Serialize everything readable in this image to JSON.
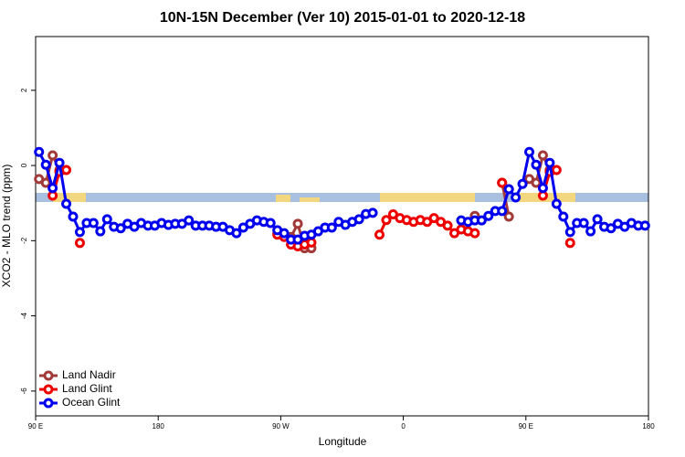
{
  "chart_data": {
    "type": "line",
    "title": "10N-15N December (Ver 10)   2015-01-01 to 2020-12-18",
    "x_label": "Longitude",
    "y_label": "XCO2 - MLO trend (ppm)",
    "xlim": [
      90,
      540
    ],
    "xticks": [
      {
        "value": 90,
        "label": "90 E"
      },
      180,
      {
        "value": 270,
        "label": "90 W"
      },
      {
        "value": 360,
        "label": "0"
      },
      {
        "value": 450,
        "label": "90 E"
      },
      {
        "value": 540,
        "label": "180"
      }
    ],
    "ylim": [
      -6.66,
      3.43
    ],
    "yticks": [
      2,
      0,
      -2,
      -4,
      -6
    ],
    "legend": "bottom-left",
    "x": [
      92.5,
      97.5,
      102.5,
      107.5,
      112.5,
      117.5,
      122.5,
      127.5,
      132.5,
      137.5,
      142.5,
      147.5,
      152.5,
      157.5,
      162.5,
      167.5,
      172.5,
      177.5,
      182.5,
      187.5,
      192.5,
      197.5,
      202.5,
      207.5,
      212.5,
      217.5,
      222.5,
      227.5,
      232.5,
      237.5,
      242.5,
      247.5,
      252.5,
      257.5,
      262.5,
      267.5,
      272.5,
      277.5,
      282.5,
      287.5,
      292.5,
      297.5,
      302.5,
      307.5,
      312.5,
      317.5,
      322.5,
      327.5,
      332.5,
      337.5,
      342.5,
      347.5,
      352.5,
      357.5,
      362.5,
      367.5,
      372.5,
      377.5,
      382.5,
      387.5,
      392.5,
      397.5,
      402.5,
      407.5,
      412.5,
      417.5,
      422.5,
      427.5,
      432.5,
      437.5,
      442.5,
      447.5,
      452.5,
      457.5,
      462.5,
      467.5,
      472.5,
      477.5,
      482.5,
      487.5,
      492.5,
      497.5,
      502.5,
      507.5,
      512.5,
      517.5,
      522.5,
      527.5,
      532.5,
      537.5
    ],
    "series": [
      {
        "name": "Land Nadir",
        "color": "#a33a3a",
        "values": [
          -0.36,
          -0.46,
          0.27,
          -0.12,
          null,
          null,
          null,
          null,
          null,
          null,
          null,
          null,
          null,
          null,
          null,
          null,
          null,
          null,
          null,
          null,
          null,
          null,
          null,
          null,
          null,
          null,
          null,
          null,
          null,
          null,
          null,
          null,
          null,
          null,
          null,
          -1.8,
          -1.85,
          -1.9,
          -1.55,
          -2.2,
          -2.2,
          null,
          null,
          null,
          null,
          null,
          null,
          null,
          null,
          null,
          null,
          null,
          null,
          null,
          null,
          null,
          null,
          null,
          null,
          null,
          null,
          null,
          null,
          null,
          -1.34,
          null,
          null,
          null,
          -0.46,
          -1.36,
          null,
          null,
          -0.36,
          -0.46,
          0.27,
          -0.12,
          null,
          null,
          null,
          null,
          null,
          null,
          null,
          null,
          null,
          null,
          null,
          null,
          null,
          null
        ]
      },
      {
        "name": "Land Glint",
        "color": "#ee0000",
        "values": [
          null,
          null,
          -0.8,
          -0.17,
          -0.12,
          null,
          -2.06,
          null,
          null,
          null,
          null,
          null,
          null,
          null,
          null,
          null,
          null,
          null,
          null,
          null,
          null,
          null,
          null,
          null,
          null,
          null,
          null,
          null,
          null,
          null,
          null,
          null,
          null,
          null,
          null,
          -1.84,
          -1.9,
          -2.1,
          -2.15,
          -2.1,
          -2.05,
          null,
          null,
          null,
          null,
          null,
          null,
          null,
          null,
          null,
          -1.84,
          -1.45,
          -1.3,
          -1.4,
          -1.45,
          -1.5,
          -1.45,
          -1.5,
          -1.4,
          -1.5,
          -1.6,
          -1.8,
          -1.7,
          -1.75,
          -1.8,
          null,
          null,
          null,
          -0.46,
          -0.63,
          null,
          null,
          null,
          null,
          -0.8,
          -0.17,
          -0.12,
          null,
          -2.06,
          null,
          null,
          null,
          null,
          null,
          null,
          null,
          null,
          null,
          null,
          null
        ]
      },
      {
        "name": "Ocean Glint",
        "color": "#0000ee",
        "values": [
          0.36,
          0.02,
          -0.6,
          0.07,
          -1.02,
          -1.36,
          -1.77,
          -1.53,
          -1.53,
          -1.75,
          -1.43,
          -1.63,
          -1.67,
          -1.55,
          -1.63,
          -1.53,
          -1.6,
          -1.6,
          -1.53,
          -1.58,
          -1.55,
          -1.55,
          -1.46,
          -1.6,
          -1.6,
          -1.6,
          -1.63,
          -1.63,
          -1.72,
          -1.8,
          -1.65,
          -1.55,
          -1.46,
          -1.5,
          -1.53,
          -1.72,
          -1.8,
          -1.97,
          -1.97,
          -1.87,
          -1.84,
          -1.75,
          -1.65,
          -1.65,
          -1.5,
          -1.58,
          -1.5,
          -1.43,
          -1.29,
          -1.26,
          null,
          null,
          null,
          null,
          null,
          null,
          null,
          null,
          null,
          null,
          null,
          null,
          -1.46,
          -1.5,
          -1.46,
          -1.46,
          -1.34,
          -1.21,
          -1.21,
          -0.63,
          -0.85,
          -0.49,
          0.36,
          0.02,
          -0.6,
          0.07,
          -1.02,
          -1.36,
          -1.77,
          -1.53,
          -1.53,
          -1.75,
          -1.43,
          -1.63,
          -1.67,
          -1.55,
          -1.63,
          -1.53,
          -1.6,
          -1.6
        ]
      }
    ]
  }
}
